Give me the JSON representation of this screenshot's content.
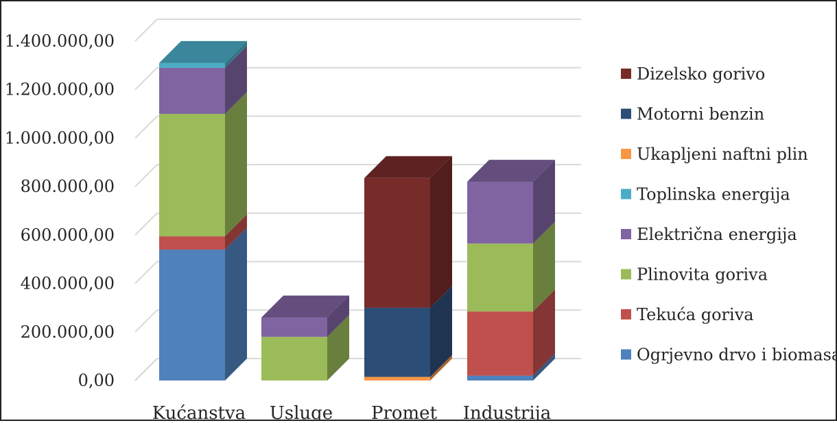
{
  "chart_data": {
    "type": "bar",
    "stacked": true,
    "three_d": true,
    "categories": [
      "Kućanstva",
      "Usluge",
      "Promet",
      "Industrija"
    ],
    "series": [
      {
        "name": "Ogrjevno drvo i biomasa",
        "color": "#4F81BD",
        "values": [
          540000,
          0,
          0,
          20000
        ]
      },
      {
        "name": "Tekuća goriva",
        "color": "#C0504D",
        "values": [
          55000,
          0,
          0,
          265000
        ]
      },
      {
        "name": "Ukapljeni naftni plin",
        "color": "#F79646",
        "values": [
          0,
          0,
          15000,
          0
        ]
      },
      {
        "name": "Motorni benzin",
        "color": "#2C4D75",
        "values": [
          0,
          0,
          285000,
          0
        ]
      },
      {
        "name": "Plinovita goriva",
        "color": "#9BBB59",
        "values": [
          505000,
          180000,
          0,
          280000
        ]
      },
      {
        "name": "Električna energija",
        "color": "#8064A2",
        "values": [
          190000,
          80000,
          0,
          255000
        ]
      },
      {
        "name": "Toplinska energija",
        "color": "#4BACC6",
        "values": [
          20000,
          0,
          0,
          0
        ]
      },
      {
        "name": "Dizelsko gorivo",
        "color": "#772C2A",
        "values": [
          0,
          0,
          535000,
          0
        ]
      }
    ],
    "legend_order": [
      "Dizelsko gorivo",
      "Motorni benzin",
      "Ukapljeni naftni plin",
      "Toplinska energija",
      "Električna energija",
      "Plinovita goriva",
      "Tekuća goriva",
      "Ogrjevno drvo i biomasa"
    ],
    "ylim": [
      0,
      1400000
    ],
    "yticks": [
      0,
      200000,
      400000,
      600000,
      800000,
      1000000,
      1200000,
      1400000
    ],
    "ytick_labels": [
      "0,00",
      "200.000,00",
      "400.000,00",
      "600.000,00",
      "800.000,00",
      "1.000.000,00",
      "1.200.000,00",
      "1.400.000,00"
    ],
    "grid": true,
    "legend_position": "right"
  }
}
